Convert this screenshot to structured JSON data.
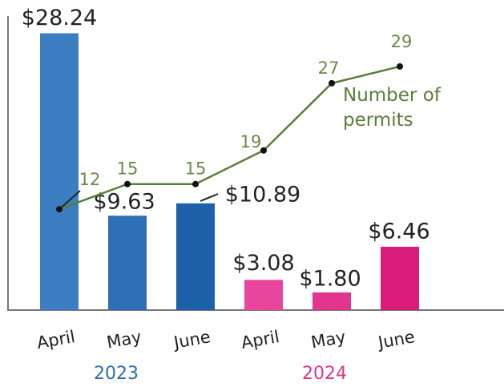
{
  "chart_data": {
    "type": "bar",
    "categories": [
      "April",
      "May",
      "June",
      "April",
      "May",
      "June"
    ],
    "groups": [
      {
        "label": "2023",
        "color": "#2a6fb0"
      },
      {
        "label": "2024",
        "color": "#e0338c"
      }
    ],
    "values": [
      28.24,
      9.63,
      10.89,
      3.08,
      1.8,
      6.46
    ],
    "value_labels": [
      "$28.24",
      "$9.63",
      "$10.89",
      "$3.08",
      "$1.80",
      "$6.46"
    ],
    "colors": [
      "#3b7fc2",
      "#2e70b8",
      "#1c60aa",
      "#e8459c",
      "#e3358f",
      "#d91c7b"
    ],
    "ylim": [
      0,
      30
    ],
    "series": [
      {
        "name": "Number of permits",
        "color": "#5b7d38",
        "axis": "y2",
        "values": [
          12,
          15,
          15,
          19,
          27,
          29
        ]
      }
    ],
    "y2lim": [
      0,
      35
    ]
  }
}
